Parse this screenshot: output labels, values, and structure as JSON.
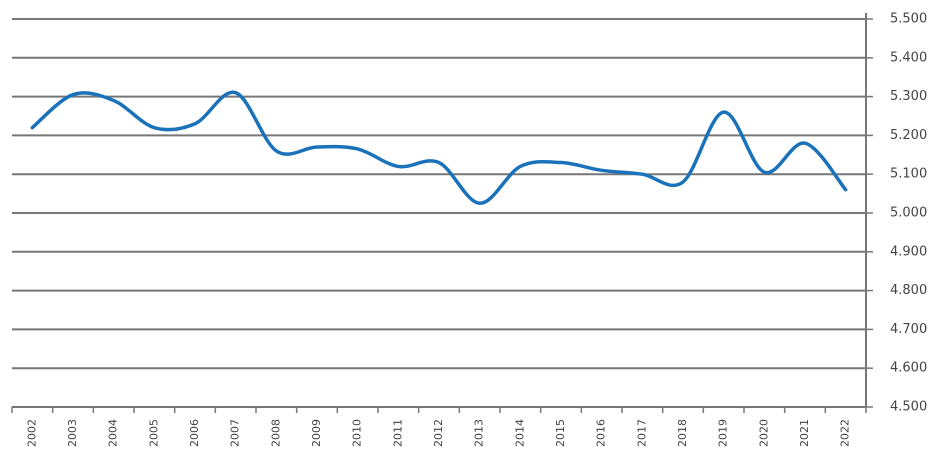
{
  "chart_data": {
    "type": "line",
    "categories": [
      "2002",
      "2003",
      "2004",
      "2005",
      "2006",
      "2007",
      "2008",
      "2009",
      "2010",
      "2011",
      "2012",
      "2013",
      "2014",
      "2015",
      "2016",
      "2017",
      "2018",
      "2019",
      "2020",
      "2021",
      "2022"
    ],
    "values": [
      5220,
      5305,
      5290,
      5220,
      5230,
      5310,
      5160,
      5170,
      5165,
      5120,
      5130,
      5025,
      5120,
      5130,
      5110,
      5100,
      5080,
      5260,
      5105,
      5180,
      5060
    ],
    "color": "#1a72bb",
    "ylim": [
      4500,
      5500
    ],
    "yticks": [
      {
        "value": 4500,
        "label": "4.500"
      },
      {
        "value": 4600,
        "label": "4.600"
      },
      {
        "value": 4700,
        "label": "4.700"
      },
      {
        "value": 4800,
        "label": "4.800"
      },
      {
        "value": 4900,
        "label": "4.900"
      },
      {
        "value": 5000,
        "label": "5.000"
      },
      {
        "value": 5100,
        "label": "5.100"
      },
      {
        "value": 5200,
        "label": "5.200"
      },
      {
        "value": 5300,
        "label": "5.300"
      },
      {
        "value": 5400,
        "label": "5.400"
      },
      {
        "value": 5500,
        "label": "5.500"
      }
    ],
    "grid": true
  }
}
